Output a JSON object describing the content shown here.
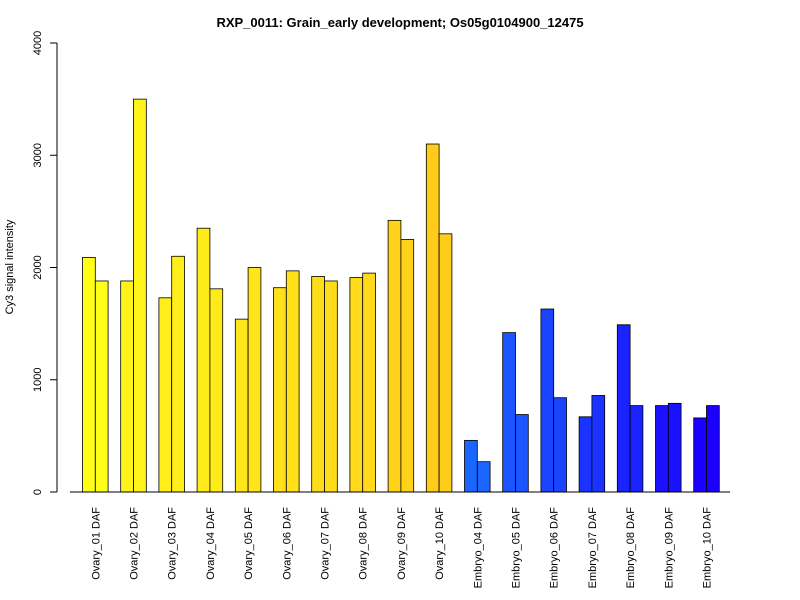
{
  "chart_data": {
    "type": "bar",
    "title": "RXP_0011: Grain_early development; Os05g0104900_12475",
    "xlabel": "",
    "ylabel": "Cy3 signal intensity",
    "ylim": [
      0,
      4000
    ],
    "yticks": [
      0,
      1000,
      2000,
      3000,
      4000
    ],
    "grid": false,
    "legend": "none",
    "categories": [
      "Ovary_01 DAF",
      "Ovary_02 DAF",
      "Ovary_03 DAF",
      "Ovary_04 DAF",
      "Ovary_05 DAF",
      "Ovary_06 DAF",
      "Ovary_07 DAF",
      "Ovary_08 DAF",
      "Ovary_09 DAF",
      "Ovary_10 DAF",
      "Embryo_04 DAF",
      "Embryo_05 DAF",
      "Embryo_06 DAF",
      "Embryo_07 DAF",
      "Embryo_08 DAF",
      "Embryo_09 DAF",
      "Embryo_10 DAF"
    ],
    "series": [
      {
        "values": [
          2090,
          1880,
          1730,
          2350,
          1540,
          1820,
          1920,
          1910,
          2420,
          3100,
          460,
          1420,
          1630,
          670,
          1490,
          770,
          660
        ]
      },
      {
        "values": [
          1880,
          3500,
          2100,
          1810,
          2000,
          1970,
          1880,
          1950,
          2250,
          2300,
          270,
          690,
          840,
          860,
          770,
          790,
          770
        ]
      }
    ],
    "bar_colors": [
      "#FFFF1A",
      "#FFF41A",
      "#FFEE1A",
      "#FFEB1A",
      "#FFE61A",
      "#FFE01A",
      "#FFDC1A",
      "#FFD91A",
      "#FFD31A",
      "#FFCC1A",
      "#1A66FF",
      "#1A55FF",
      "#1A44FF",
      "#1A33FF",
      "#1A22FF",
      "#1A11FF",
      "#1A00FF"
    ],
    "edge_color": "#000000"
  }
}
